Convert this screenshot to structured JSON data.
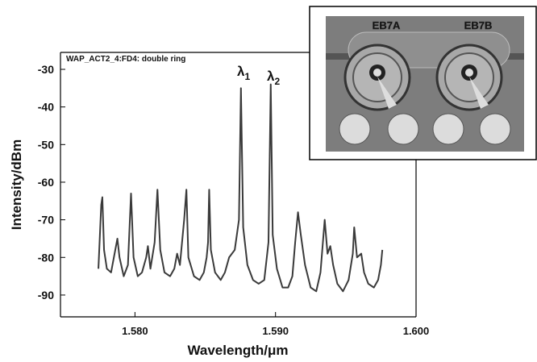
{
  "chart_data": {
    "type": "line",
    "title": "WAP_ACT2_4:FD4: double ring",
    "x_label": "Wavelength/μm",
    "y_label": "Intensity/dBm",
    "annotations": [
      {
        "text": "λ",
        "subscript": "1"
      },
      {
        "text": "λ",
        "subscript": "2"
      }
    ],
    "inset_labels": [
      "EB7A",
      "EB7B"
    ],
    "xlim": [
      1.5747,
      1.6
    ],
    "ylim": [
      -95.8,
      -25.5
    ],
    "xticks": [
      {
        "value": 1.58,
        "label": "1.580"
      },
      {
        "value": 1.59,
        "label": "1.590"
      },
      {
        "value": 1.6,
        "label": "1.600"
      }
    ],
    "yticks": [
      -30,
      -40,
      -50,
      -60,
      -70,
      -80,
      -90
    ],
    "series": [
      {
        "color": "#3a3a3a",
        "x": [
          1.5774,
          1.5776,
          1.57768,
          1.5778,
          1.578,
          1.5783,
          1.5786,
          1.57875,
          1.5789,
          1.5792,
          1.5795,
          1.57972,
          1.5799,
          1.5802,
          1.5805,
          1.5808,
          1.58092,
          1.5811,
          1.5814,
          1.5816,
          1.5818,
          1.5821,
          1.5825,
          1.5828,
          1.583,
          1.5832,
          1.5835,
          1.58366,
          1.5838,
          1.5842,
          1.5846,
          1.5849,
          1.5851,
          1.5852,
          1.58528,
          1.5854,
          1.5857,
          1.5861,
          1.5864,
          1.5867,
          1.5871,
          1.5874,
          1.58754,
          1.5877,
          1.588,
          1.5884,
          1.5888,
          1.5892,
          1.5895,
          1.58966,
          1.5898,
          1.5901,
          1.5905,
          1.5909,
          1.5912,
          1.5914,
          1.5916,
          1.5918,
          1.5921,
          1.5925,
          1.5929,
          1.5932,
          1.5935,
          1.5937,
          1.5939,
          1.5941,
          1.5944,
          1.5948,
          1.5952,
          1.5955,
          1.5956,
          1.5958,
          1.5961,
          1.5963,
          1.5966,
          1.597,
          1.5973,
          1.5975,
          1.5976
        ],
        "values": [
          -83,
          -66,
          -64,
          -78,
          -83,
          -84,
          -78,
          -75,
          -80,
          -85,
          -82,
          -63,
          -80,
          -85,
          -84,
          -80,
          -77,
          -83,
          -76,
          -62,
          -78,
          -84,
          -85,
          -83,
          -79,
          -82,
          -70,
          -62,
          -80,
          -85,
          -86,
          -84,
          -80,
          -76,
          -62,
          -78,
          -84,
          -86,
          -84,
          -80,
          -78,
          -70,
          -35,
          -72,
          -82,
          -86,
          -87,
          -86,
          -76,
          -34,
          -74,
          -83,
          -88,
          -88,
          -85,
          -76,
          -68,
          -74,
          -82,
          -88,
          -89,
          -84,
          -70,
          -79,
          -77,
          -82,
          -87,
          -89,
          -86,
          -79,
          -72,
          -80,
          -79,
          -84,
          -87,
          -88,
          -86,
          -82,
          -78
        ]
      }
    ]
  }
}
